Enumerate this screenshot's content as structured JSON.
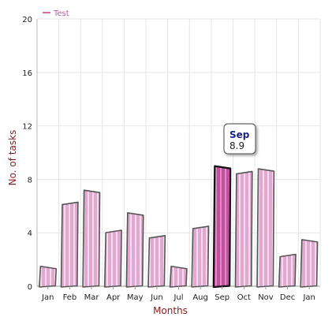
{
  "chart_data": {
    "type": "bar",
    "title": "",
    "xlabel": "Months",
    "ylabel": "No. of tasks",
    "categories": [
      "Jan",
      "Feb",
      "Mar",
      "Apr",
      "May",
      "Jun",
      "Jul",
      "Aug",
      "Sep",
      "Oct",
      "Nov",
      "Dec",
      "Jan"
    ],
    "series": [
      {
        "name": "Test",
        "values": [
          1.4,
          6.2,
          7.1,
          4.1,
          5.4,
          3.7,
          1.4,
          4.4,
          8.9,
          8.5,
          8.7,
          2.3,
          3.4
        ]
      }
    ],
    "ylim": [
      0,
      20
    ],
    "yticks": [
      "0",
      "4",
      "8",
      "12",
      "16",
      "20"
    ],
    "grid": true,
    "legend_position": "top-left",
    "highlighted": {
      "category": "Sep",
      "value": "8.9"
    }
  },
  "colors": {
    "bar_fill": "#e2a9d0",
    "bar_stripe": "#f6dcee",
    "bar_highlight": "#c44f9e",
    "bar_outline": "#555555",
    "grid": "#e6e6e6",
    "axis_title": "#8b1a1a",
    "legend": "#d46aa6",
    "tooltip_title": "#1a237e"
  }
}
